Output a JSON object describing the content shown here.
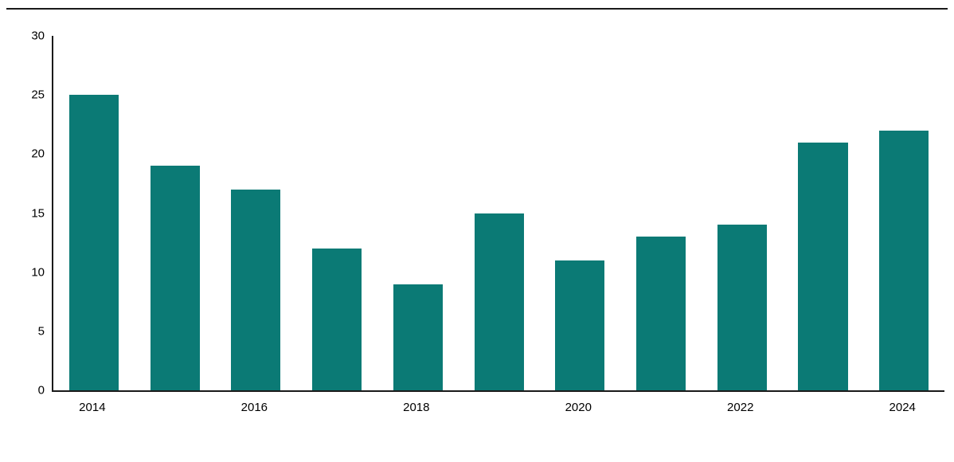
{
  "chart_data": {
    "type": "bar",
    "title": "",
    "xlabel": "",
    "ylabel": "",
    "categories": [
      "2014",
      "2015",
      "2016",
      "2017",
      "2018",
      "2019",
      "2020",
      "2021",
      "2022",
      "2023",
      "2024"
    ],
    "values": [
      25,
      19,
      17,
      12,
      9,
      15,
      11,
      13,
      14,
      21,
      22
    ],
    "ylim": [
      0,
      30
    ],
    "yticks": [
      0,
      5,
      10,
      15,
      20,
      25,
      30
    ],
    "xtick_labels_shown": [
      "2014",
      "2016",
      "2018",
      "2020",
      "2022",
      "2024"
    ],
    "bar_color": "#0b7a75",
    "axis_color": "#1a1a1a",
    "grid": false,
    "legend": "none"
  }
}
